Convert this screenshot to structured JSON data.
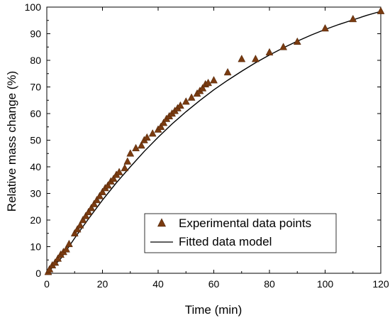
{
  "chart_data": {
    "type": "scatter",
    "xlabel": "Time (min)",
    "ylabel": "Relative mass change (%)",
    "xlim": [
      0,
      120
    ],
    "ylim": [
      0,
      100
    ],
    "x_ticks": [
      0,
      20,
      40,
      60,
      80,
      100,
      120
    ],
    "y_ticks": [
      0,
      10,
      20,
      30,
      40,
      50,
      60,
      70,
      80,
      90,
      100
    ],
    "grid": false,
    "legend_position": "lower-right",
    "series": [
      {
        "name": "Experimental data points",
        "kind": "scatter",
        "marker": "triangle",
        "color": "#7a3b10",
        "points": [
          [
            0.5,
            0.5
          ],
          [
            1,
            1.5
          ],
          [
            2,
            3
          ],
          [
            3,
            4
          ],
          [
            4,
            5.5
          ],
          [
            5,
            7
          ],
          [
            6,
            8
          ],
          [
            7,
            9
          ],
          [
            8,
            11
          ],
          [
            10,
            15
          ],
          [
            11,
            16.5
          ],
          [
            12,
            18
          ],
          [
            13,
            20
          ],
          [
            14,
            21.5
          ],
          [
            15,
            23
          ],
          [
            16,
            24.5
          ],
          [
            17,
            26
          ],
          [
            18,
            27.5
          ],
          [
            19,
            29
          ],
          [
            20,
            30.5
          ],
          [
            21,
            32
          ],
          [
            22,
            33
          ],
          [
            23,
            34.5
          ],
          [
            24,
            35.5
          ],
          [
            25,
            37
          ],
          [
            26,
            38
          ],
          [
            28,
            39.5
          ],
          [
            29,
            42
          ],
          [
            30,
            45
          ],
          [
            32,
            47
          ],
          [
            34,
            48
          ],
          [
            35,
            50
          ],
          [
            36,
            51
          ],
          [
            38,
            52.5
          ],
          [
            40,
            54
          ],
          [
            41,
            55
          ],
          [
            42,
            56.5
          ],
          [
            43,
            58
          ],
          [
            44,
            59
          ],
          [
            45,
            60
          ],
          [
            46,
            61
          ],
          [
            47,
            62
          ],
          [
            48,
            63
          ],
          [
            50,
            64.5
          ],
          [
            52,
            66
          ],
          [
            54,
            67.5
          ],
          [
            55,
            68.5
          ],
          [
            56,
            69.5
          ],
          [
            57,
            71
          ],
          [
            58,
            71.5
          ],
          [
            60,
            72.5
          ],
          [
            65,
            75.5
          ],
          [
            70,
            80.5
          ],
          [
            75,
            80.5
          ],
          [
            80,
            83
          ],
          [
            85,
            85
          ],
          [
            90,
            87
          ],
          [
            100,
            92
          ],
          [
            110,
            95.5
          ],
          [
            120,
            98.5
          ]
        ]
      },
      {
        "name": "Fitted data model",
        "kind": "line",
        "color": "#000000",
        "points": [
          [
            0,
            0
          ],
          [
            5,
            5.5
          ],
          [
            10,
            13.2
          ],
          [
            15,
            20.5
          ],
          [
            20,
            27.5
          ],
          [
            25,
            34
          ],
          [
            30,
            40
          ],
          [
            35,
            45.8
          ],
          [
            40,
            51.1
          ],
          [
            45,
            56.1
          ],
          [
            50,
            60.7
          ],
          [
            55,
            64.9
          ],
          [
            60,
            68.9
          ],
          [
            65,
            72.5
          ],
          [
            70,
            75.9
          ],
          [
            75,
            79.1
          ],
          [
            80,
            82
          ],
          [
            85,
            84.7
          ],
          [
            90,
            87.2
          ],
          [
            95,
            89.5
          ],
          [
            100,
            91.6
          ],
          [
            105,
            93.5
          ],
          [
            110,
            95.2
          ],
          [
            115,
            96.9
          ],
          [
            120,
            98.4
          ]
        ]
      }
    ]
  }
}
